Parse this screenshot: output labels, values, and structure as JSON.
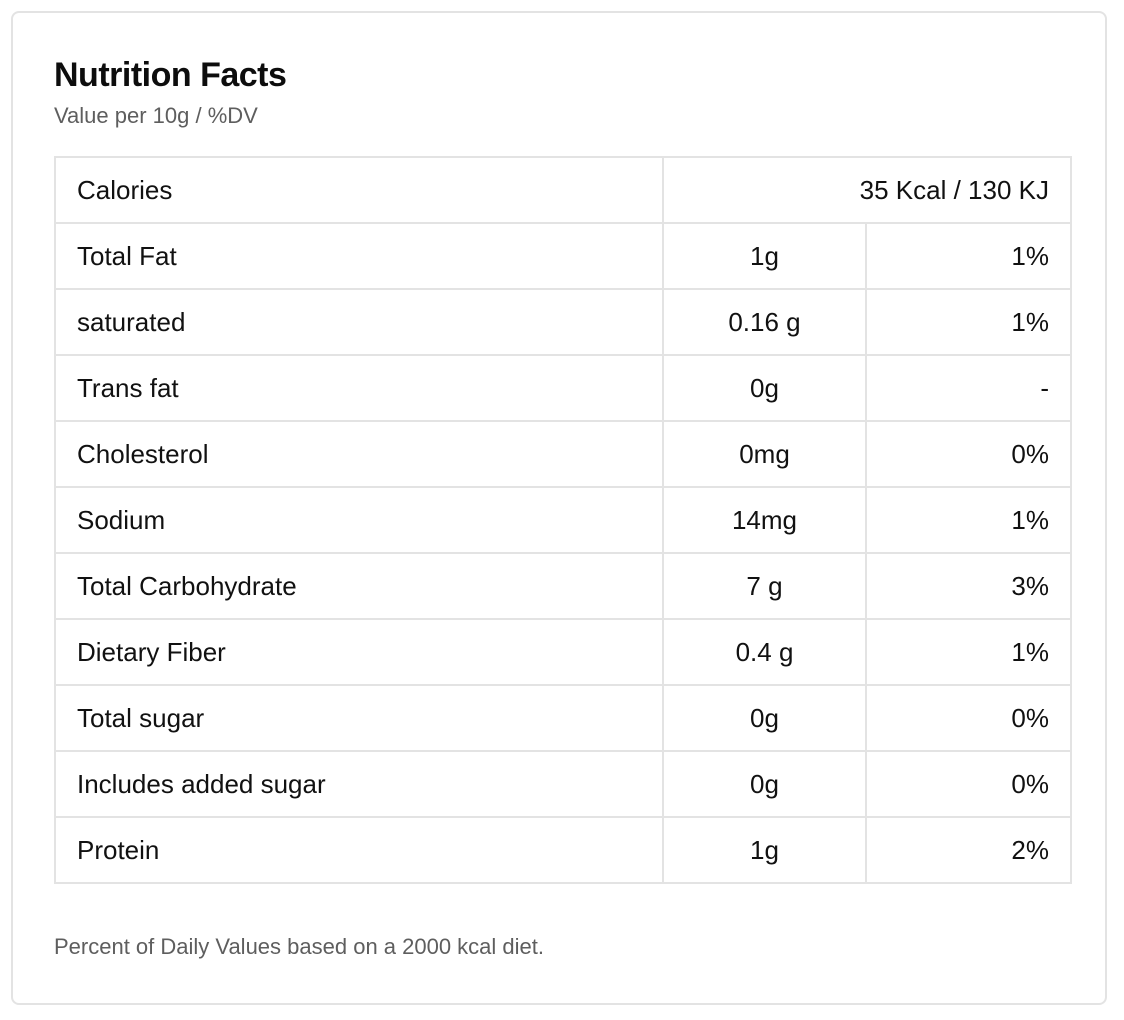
{
  "panel": {
    "title": "Nutrition Facts",
    "subtitle": "Value per 10g / %DV",
    "footnote": "Percent of Daily Values based on a 2000 kcal diet."
  },
  "calories": {
    "label": "Calories",
    "value": "35 Kcal / 130 KJ"
  },
  "nutrients": [
    {
      "label": "Total Fat",
      "amount": "1g",
      "dv": "1%"
    },
    {
      "label": "saturated",
      "amount": "0.16 g",
      "dv": "1%"
    },
    {
      "label": "Trans fat",
      "amount": "0g",
      "dv": "-"
    },
    {
      "label": "Cholesterol",
      "amount": "0mg",
      "dv": "0%"
    },
    {
      "label": "Sodium",
      "amount": "14mg",
      "dv": "1%"
    },
    {
      "label": "Total Carbohydrate",
      "amount": "7 g",
      "dv": "3%"
    },
    {
      "label": "Dietary Fiber",
      "amount": "0.4 g",
      "dv": "1%"
    },
    {
      "label": "Total sugar",
      "amount": "0g",
      "dv": "0%"
    },
    {
      "label": "Includes added sugar",
      "amount": "0g",
      "dv": "0%"
    },
    {
      "label": "Protein",
      "amount": "1g",
      "dv": "2%"
    }
  ],
  "colors": {
    "border": "#e3e3e3",
    "text": "#111111",
    "muted": "#5e5e5e"
  }
}
